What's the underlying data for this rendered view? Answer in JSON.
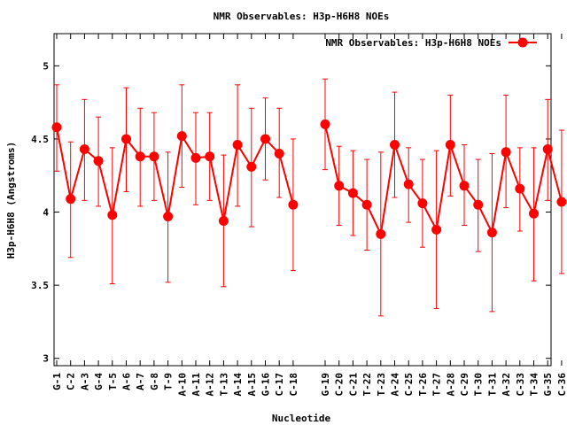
{
  "chart_data": {
    "type": "line",
    "title": "NMR Observables: H3p-H6H8 NOEs",
    "xlabel": "Nucleotide",
    "ylabel": "H3p-H6H8 (Angstroms)",
    "ylim": [
      2.95,
      5.22
    ],
    "yticks": [
      3,
      3.5,
      4,
      4.5,
      5
    ],
    "ytick_labels": [
      "3",
      "3.5",
      "4",
      "4.5",
      "5"
    ],
    "legend": "top-right",
    "series": [
      {
        "name": "NMR Observables: H3p-H6H8 NOEs",
        "color": "#ff0000",
        "segments": [
          {
            "labels": [
              "G-1",
              "C-2",
              "A-3",
              "G-4",
              "T-5",
              "A-6",
              "A-7",
              "G-8",
              "T-9",
              "A-10",
              "A-11",
              "A-12",
              "T-13",
              "A-14",
              "A-15",
              "G-16",
              "C-17",
              "C-18"
            ],
            "values": [
              4.58,
              4.09,
              4.43,
              4.35,
              3.98,
              4.5,
              4.38,
              4.38,
              3.97,
              4.52,
              4.37,
              4.38,
              3.94,
              4.46,
              4.31,
              4.5,
              4.4,
              4.05
            ],
            "err_low": [
              4.28,
              3.69,
              4.08,
              4.04,
              3.51,
              4.14,
              4.04,
              4.08,
              3.52,
              4.17,
              4.05,
              4.08,
              3.49,
              4.04,
              3.9,
              4.22,
              4.1,
              3.6
            ],
            "err_high": [
              4.87,
              4.48,
              4.77,
              4.65,
              4.44,
              4.85,
              4.71,
              4.68,
              4.41,
              4.87,
              4.68,
              4.68,
              4.39,
              4.87,
              4.71,
              4.78,
              4.71,
              4.5
            ]
          },
          {
            "labels": [
              "G-19",
              "C-20",
              "C-21",
              "T-22",
              "T-23",
              "A-24",
              "C-25",
              "T-26",
              "T-27",
              "A-28",
              "C-29",
              "T-30",
              "T-31",
              "A-32",
              "C-33",
              "T-34",
              "G-35",
              "C-36"
            ],
            "values": [
              4.6,
              4.18,
              4.13,
              4.05,
              3.85,
              4.46,
              4.19,
              4.06,
              3.88,
              4.46,
              4.18,
              4.05,
              3.86,
              4.41,
              4.16,
              3.99,
              4.43,
              4.07
            ],
            "err_low": [
              4.29,
              3.91,
              3.84,
              3.74,
              3.29,
              4.1,
              3.93,
              3.76,
              3.34,
              4.11,
              3.91,
              3.73,
              3.32,
              4.03,
              3.87,
              3.53,
              4.08,
              3.58
            ],
            "err_high": [
              4.91,
              4.45,
              4.42,
              4.36,
              4.41,
              4.82,
              4.44,
              4.36,
              4.42,
              4.8,
              4.46,
              4.36,
              4.4,
              4.8,
              4.44,
              4.44,
              4.77,
              4.56
            ]
          }
        ]
      }
    ]
  }
}
